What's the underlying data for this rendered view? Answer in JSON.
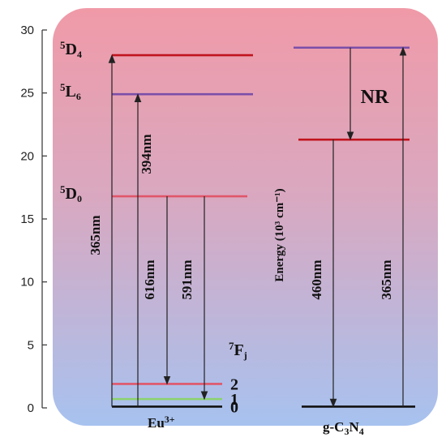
{
  "chart_data": {
    "type": "energy-level-diagram",
    "y_axis": {
      "label": "Energy (10³ cm⁻¹)",
      "range": [
        0,
        30
      ],
      "ticks": [
        0,
        5,
        10,
        15,
        20,
        25,
        30
      ]
    },
    "eu_levels": [
      {
        "id": "5D4",
        "label_sup": "5",
        "label_main": "D",
        "label_sub": "4",
        "energy": 28.0,
        "color": "#c0141e"
      },
      {
        "id": "5L6",
        "label_sup": "5",
        "label_main": "L",
        "label_sub": "6",
        "energy": 24.9,
        "color": "#7b4fa8"
      },
      {
        "id": "5D0",
        "label_sup": "5",
        "label_main": "D",
        "label_sub": "0",
        "energy": 16.8,
        "color": "#e0566a"
      },
      {
        "id": "7F2",
        "label": "2",
        "energy": 1.9,
        "color": "#e0566a"
      },
      {
        "id": "7F1",
        "label": "1",
        "energy": 0.7,
        "color": "#8bd36e"
      },
      {
        "id": "7F0",
        "label": "0",
        "energy": 0.1,
        "color": "#111111"
      }
    ],
    "fj_label": {
      "sup": "7",
      "main": "F",
      "sub": "j"
    },
    "eu_base_label": {
      "main": "Eu",
      "sup": "3+"
    },
    "cn_levels": [
      {
        "id": "cn-top",
        "energy": 28.6,
        "color": "#7b4fa8"
      },
      {
        "id": "cn-mid",
        "energy": 21.3,
        "color": "#c0141e"
      },
      {
        "id": "cn-base",
        "energy": 0.1,
        "color": "#111111"
      }
    ],
    "cn_base_label": {
      "p1": "g-C",
      "s1": "3",
      "p2": "N",
      "s2": "4"
    },
    "transitions": [
      {
        "id": "eu-365",
        "label": "365nm",
        "from": 0.1,
        "to": 28.0,
        "direction": "up"
      },
      {
        "id": "eu-394",
        "label": "394nm",
        "from": 0.1,
        "to": 24.9,
        "direction": "up"
      },
      {
        "id": "eu-616",
        "label": "616nm",
        "from": 16.8,
        "to": 1.9,
        "direction": "down"
      },
      {
        "id": "eu-591",
        "label": "591nm",
        "from": 16.8,
        "to": 0.7,
        "direction": "down"
      },
      {
        "id": "cn-nr",
        "label": "NR",
        "from": 28.6,
        "to": 21.3,
        "direction": "down"
      },
      {
        "id": "cn-460",
        "label": "460nm",
        "from": 21.3,
        "to": 0.1,
        "direction": "down"
      },
      {
        "id": "cn-365",
        "label": "365nm",
        "from": 0.1,
        "to": 28.6,
        "direction": "up"
      }
    ],
    "background_gradient": {
      "top": "#f09aa8",
      "bottom": "#a7c2ef"
    }
  }
}
